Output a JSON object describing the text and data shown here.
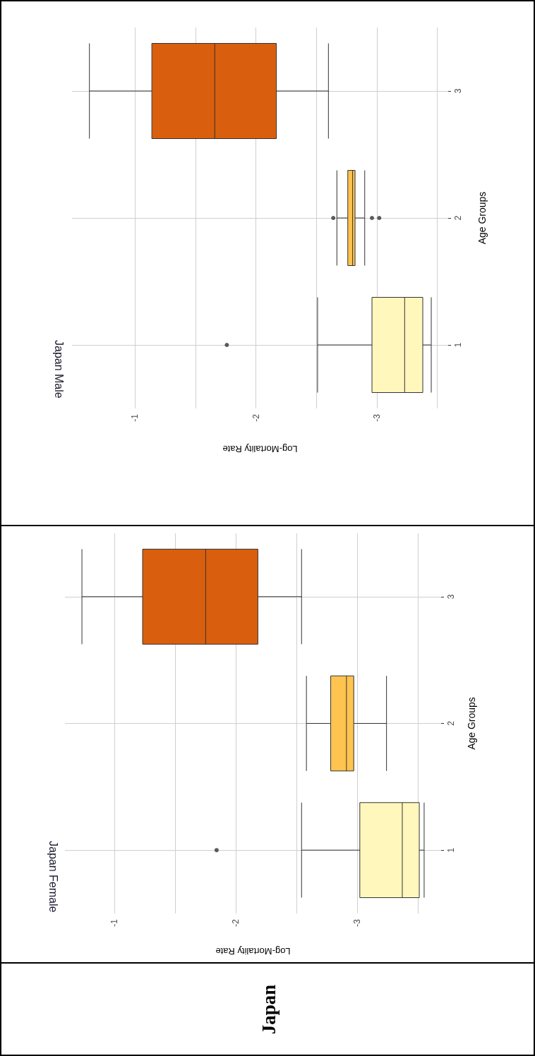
{
  "chart_data": [
    {
      "type": "other",
      "title": "Japan"
    },
    {
      "type": "box",
      "orientation": "horizontal",
      "title": "Japan Female",
      "xlabel": "Log-Mortality Rate",
      "ylabel": "Age Groups",
      "categories": [
        "3",
        "2",
        "1"
      ],
      "colors": [
        "#d95f0e",
        "#fec44f",
        "#fff7bc"
      ],
      "boxes": [
        {
          "low": -2.54,
          "q1": -2.18,
          "median": -1.75,
          "q3": -1.23,
          "high": -0.73
        },
        {
          "low": -3.24,
          "q1": -2.97,
          "median": -2.91,
          "q3": -2.78,
          "high": -2.58
        },
        {
          "low": -3.55,
          "q1": -3.51,
          "median": -3.37,
          "q3": -3.02,
          "high": -2.54,
          "outliers": [
            -1.84
          ]
        }
      ],
      "xlim": [
        -0.59,
        -3.69
      ],
      "xticks": [
        -1,
        {
          "value": -1.5,
          "label": null
        },
        -2,
        {
          "value": -2.5,
          "label": null
        },
        -3,
        {
          "value": -3.5,
          "label": null
        }
      ],
      "grid": true
    },
    {
      "type": "box",
      "orientation": "horizontal",
      "title": "Japan Male",
      "xlabel": "Log-Mortality Rate",
      "ylabel": "Age Groups",
      "categories": [
        "3",
        "2",
        "1"
      ],
      "colors": [
        "#d95f0e",
        "#fec44f",
        "#fff7bc"
      ],
      "boxes": [
        {
          "low": -2.6,
          "q1": -2.17,
          "median": -1.66,
          "q3": -1.14,
          "high": -0.624
        },
        {
          "low": -2.9,
          "q1": -2.82,
          "median": -2.8,
          "q3": -2.76,
          "high": -2.67,
          "outliers": [
            -2.64,
            -2.96,
            -3.02
          ]
        },
        {
          "low": -3.45,
          "q1": -3.38,
          "median": -3.23,
          "q3": -2.96,
          "high": -2.51,
          "outliers": [
            -1.76
          ]
        }
      ],
      "xlim": [
        -0.48,
        -3.59
      ],
      "xticks": [
        -1,
        {
          "value": -1.5,
          "label": null
        },
        -2,
        {
          "value": -2.5,
          "label": null
        },
        -3,
        {
          "value": -3.5,
          "label": null
        }
      ],
      "grid": true
    }
  ]
}
